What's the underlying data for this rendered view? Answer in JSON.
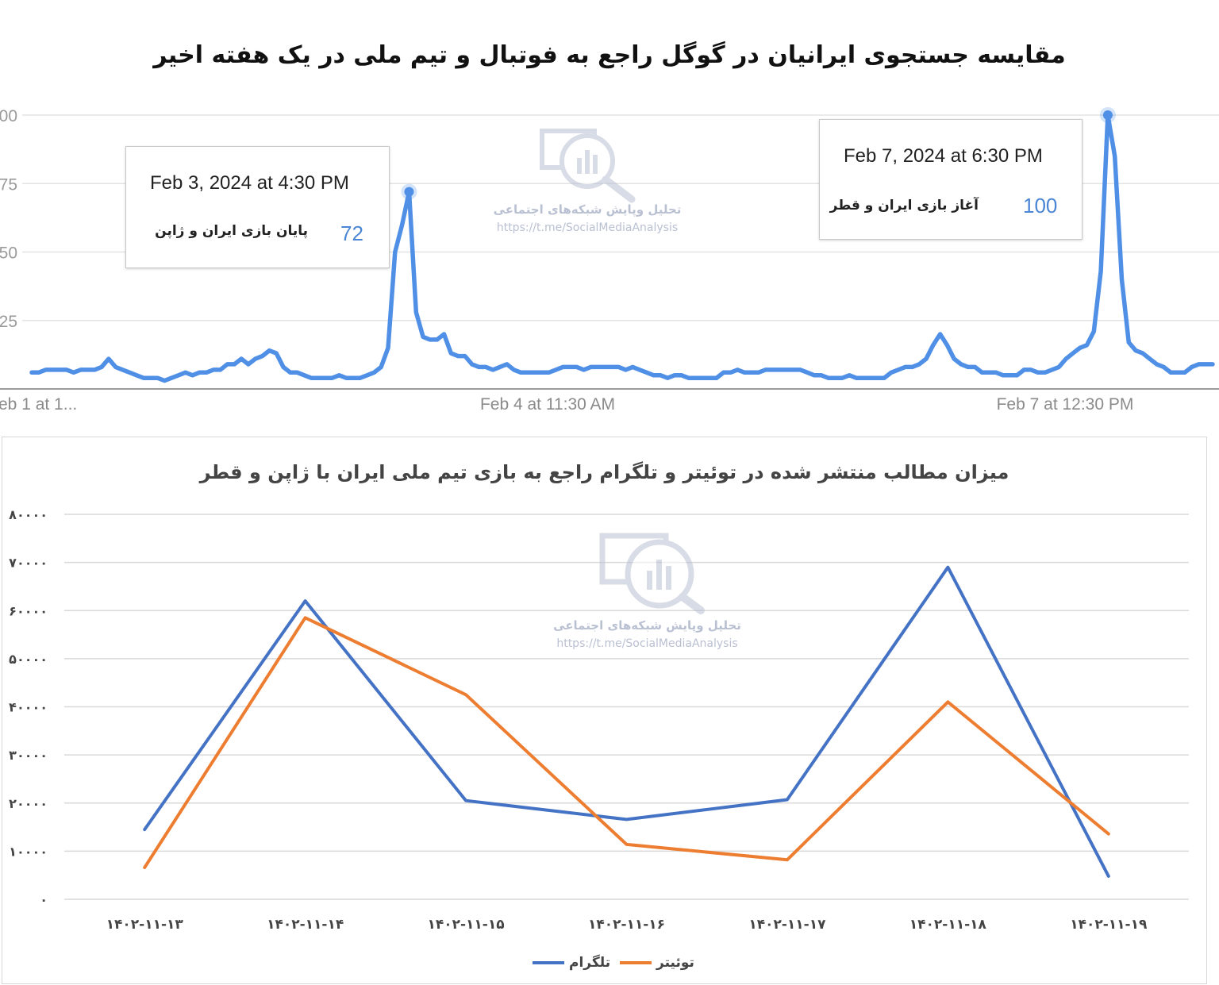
{
  "main_title": "مقایسه جستجوی ایرانیان در گوگل راجع به فوتبال و تیم ملی در یک هفته اخیر",
  "watermark": {
    "name": "تحلیل وپایش شبکه‌های اجتماعی",
    "url": "https://t.me/SocialMediaAnalysis"
  },
  "tooltip_1": {
    "date": "Feb 3, 2024 at 4:30 PM",
    "label": "پایان بازی ایران و ژاپن",
    "value": "72"
  },
  "tooltip_2": {
    "date": "Feb 7, 2024 at 6:30 PM",
    "label": "آغاز بازی ایران و  قطر",
    "value": "100"
  },
  "bottom_title": "میزان مطالب منتشر شده در توئیتر و تلگرام راجع به بازی تیم ملی ایران با ژاپن و قطر",
  "chart_data": [
    {
      "type": "line",
      "title": "مقایسه جستجوی ایرانیان در گوگل راجع به فوتبال و تیم ملی در یک هفته اخیر",
      "ylim": [
        0,
        100
      ],
      "y_ticks": [
        "00",
        "75",
        "50",
        "25"
      ],
      "x_tick_labels": [
        "eb 1 at 1...",
        "Feb 4 at 11:30 AM",
        "Feb 7 at 12:30 PM"
      ],
      "grid": true,
      "color": "#4f8fe6",
      "values": [
        6,
        6,
        7,
        7,
        7,
        7,
        6,
        7,
        7,
        7,
        8,
        11,
        8,
        7,
        6,
        5,
        4,
        4,
        4,
        3,
        4,
        5,
        6,
        5,
        6,
        6,
        7,
        7,
        9,
        9,
        11,
        9,
        11,
        12,
        14,
        13,
        8,
        6,
        6,
        5,
        4,
        4,
        4,
        4,
        5,
        4,
        4,
        4,
        5,
        6,
        8,
        15,
        50,
        60,
        72,
        28,
        19,
        18,
        18,
        20,
        13,
        12,
        12,
        9,
        8,
        8,
        7,
        8,
        9,
        7,
        6,
        6,
        6,
        6,
        6,
        7,
        8,
        8,
        8,
        7,
        8,
        8,
        8,
        8,
        8,
        7,
        8,
        7,
        6,
        5,
        5,
        4,
        5,
        5,
        4,
        4,
        4,
        4,
        4,
        6,
        6,
        7,
        6,
        6,
        6,
        7,
        7,
        7,
        7,
        7,
        7,
        6,
        5,
        5,
        4,
        4,
        4,
        5,
        4,
        4,
        4,
        4,
        4,
        6,
        7,
        8,
        8,
        9,
        11,
        16,
        20,
        16,
        11,
        9,
        8,
        8,
        6,
        6,
        6,
        5,
        5,
        5,
        7,
        7,
        6,
        6,
        7,
        8,
        11,
        13,
        15,
        16,
        21,
        43,
        100,
        85,
        40,
        17,
        14,
        13,
        11,
        9,
        8,
        6,
        6,
        6,
        8,
        9,
        9,
        9
      ],
      "annotations": [
        {
          "point_index": 54,
          "label": "پایان بازی ایران و ژاپن",
          "value": 72
        },
        {
          "point_index": 154,
          "label": "آغاز بازی ایران و  قطر",
          "value": 100
        }
      ]
    },
    {
      "type": "line",
      "title": "میزان مطالب منتشر شده در توئیتر و تلگرام راجع به بازی تیم ملی ایران با ژاپن و قطر",
      "categories": [
        "۱۴۰۲-۱۱-۱۳",
        "۱۴۰۲-۱۱-۱۴",
        "۱۴۰۲-۱۱-۱۵",
        "۱۴۰۲-۱۱-۱۶",
        "۱۴۰۲-۱۱-۱۷",
        "۱۴۰۲-۱۱-۱۸",
        "۱۴۰۲-۱۱-۱۹"
      ],
      "ylim": [
        0,
        80000
      ],
      "y_ticks": [
        "۸۰۰۰۰",
        "۷۰۰۰۰",
        "۶۰۰۰۰",
        "۵۰۰۰۰",
        "۴۰۰۰۰",
        "۳۰۰۰۰",
        "۲۰۰۰۰",
        "۱۰۰۰۰",
        "۰"
      ],
      "grid": true,
      "legend": "bottom",
      "series": [
        {
          "name": "تلگرام",
          "color": "#4472c4",
          "values": [
            14500,
            62000,
            20500,
            16600,
            20700,
            69000,
            4800
          ]
        },
        {
          "name": "توئیتر",
          "color": "#ed7d31",
          "values": [
            6600,
            58500,
            42500,
            11400,
            8200,
            41000,
            13600
          ]
        }
      ]
    }
  ]
}
